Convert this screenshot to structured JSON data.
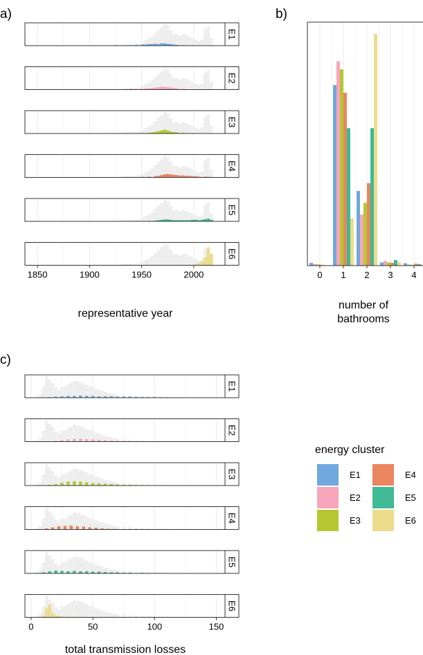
{
  "colors": {
    "E1": "#6fa8dc",
    "E2": "#f7a6bb",
    "E3": "#b5c832",
    "E4": "#ea8560",
    "E5": "#3fba94",
    "E6": "#ecdc8c",
    "background_distribution": "#eeeeee"
  },
  "legend": {
    "title": "energy cluster",
    "items": [
      "E1",
      "E2",
      "E3",
      "E4",
      "E5",
      "E6"
    ]
  },
  "chart_data": [
    {
      "panel": "a)",
      "type": "histogram",
      "xlabel": "representative year",
      "ylabel": "",
      "xlim": [
        1838,
        2030
      ],
      "xticks": [
        1850,
        1900,
        1950,
        2000
      ],
      "grid": true,
      "facets": [
        "E1",
        "E2",
        "E3",
        "E4",
        "E5",
        "E6"
      ],
      "bin_width": 3,
      "background": {
        "x": [
          1930,
          1933,
          1936,
          1939,
          1942,
          1945,
          1948,
          1951,
          1954,
          1957,
          1960,
          1963,
          1966,
          1969,
          1972,
          1975,
          1978,
          1981,
          1984,
          1987,
          1990,
          1993,
          1996,
          1999,
          2002,
          2005,
          2008,
          2011,
          2014,
          2017
        ],
        "y": [
          2,
          3,
          4,
          4,
          3,
          4,
          6,
          10,
          14,
          18,
          24,
          32,
          40,
          48,
          56,
          52,
          40,
          30,
          30,
          26,
          30,
          28,
          24,
          20,
          16,
          12,
          16,
          44,
          50,
          20
        ]
      },
      "series": [
        {
          "name": "E1",
          "x": [
            1875,
            1885,
            1905,
            1915,
            1925,
            1935,
            1945,
            1951,
            1954,
            1957,
            1960,
            1963,
            1966,
            1969,
            1972,
            1975,
            1978,
            1981,
            1984,
            1990,
            2000,
            2010
          ],
          "y": [
            0.5,
            1,
            1,
            1,
            1.5,
            1,
            2,
            3,
            3,
            4,
            4,
            5,
            4,
            6,
            6,
            5,
            4,
            3,
            2,
            1.5,
            1,
            0.5
          ]
        },
        {
          "name": "E2",
          "x": [
            1900,
            1910,
            1920,
            1930,
            1940,
            1945,
            1950,
            1954,
            1957,
            1960,
            1963,
            1966,
            1969,
            1972,
            1975,
            1978,
            1981,
            1984,
            1990,
            2000,
            2010
          ],
          "y": [
            0.5,
            1,
            1,
            1,
            2,
            1.5,
            2,
            3,
            3,
            4,
            5,
            6,
            7,
            7,
            6,
            5,
            4,
            3,
            2,
            1,
            0.5
          ]
        },
        {
          "name": "E3",
          "x": [
            1850,
            1880,
            1900,
            1920,
            1940,
            1951,
            1957,
            1960,
            1963,
            1966,
            1969,
            1972,
            1975,
            1978,
            1981,
            1984,
            1990,
            2000,
            2010
          ],
          "y": [
            0.5,
            0.5,
            0.5,
            1,
            1,
            1.5,
            2,
            3,
            4,
            6,
            8,
            10,
            8,
            5,
            4,
            3,
            2,
            1,
            0.5
          ]
        },
        {
          "name": "E4",
          "x": [
            1845,
            1875,
            1890,
            1905,
            1920,
            1935,
            1951,
            1957,
            1963,
            1966,
            1969,
            1972,
            1975,
            1978,
            1981,
            1984,
            1987,
            1990,
            1993,
            1996,
            1999,
            2002,
            2005,
            2011,
            2014
          ],
          "y": [
            0.5,
            0.5,
            1,
            0.5,
            1,
            1,
            1.5,
            2,
            3,
            4,
            6,
            8,
            9,
            8,
            7,
            6,
            5,
            5,
            4,
            4,
            3,
            3,
            2,
            2,
            1.5
          ]
        },
        {
          "name": "E5",
          "x": [
            1890,
            1910,
            1930,
            1945,
            1951,
            1957,
            1963,
            1966,
            1969,
            1972,
            1975,
            1978,
            1981,
            1984,
            1987,
            1990,
            1993,
            1996,
            1999,
            2002,
            2005,
            2008,
            2011,
            2014,
            2017
          ],
          "y": [
            0.5,
            1,
            0.5,
            1,
            1,
            1.5,
            2,
            3,
            4,
            5,
            5,
            4,
            3,
            3,
            3,
            3,
            3,
            3,
            4,
            4,
            3,
            4,
            6,
            7,
            4
          ]
        },
        {
          "name": "E6",
          "x": [
            1940,
            1960,
            1975,
            1984,
            1990,
            1996,
            2002,
            2005,
            2008,
            2011,
            2014,
            2017
          ],
          "y": [
            0.5,
            0.5,
            1,
            1,
            1.5,
            2,
            3,
            5,
            10,
            20,
            44,
            30
          ]
        }
      ]
    },
    {
      "panel": "b)",
      "type": "bar",
      "xlabel": "number of bathrooms",
      "ylabel": "",
      "categories": [
        "0",
        "1",
        "2",
        "3",
        "4"
      ],
      "ylim": [
        0,
        0.62
      ],
      "grid": true,
      "series": [
        {
          "name": "E1",
          "values": [
            0.007,
            0.46,
            0.19,
            0.008,
            0.006
          ]
        },
        {
          "name": "E2",
          "values": [
            0.004,
            0.52,
            0.13,
            0.012,
            0.003
          ]
        },
        {
          "name": "E3",
          "values": [
            0.003,
            0.5,
            0.16,
            0.008,
            0.002
          ]
        },
        {
          "name": "E4",
          "values": [
            0.002,
            0.44,
            0.21,
            0.007,
            0.005
          ]
        },
        {
          "name": "E5",
          "values": [
            0.001,
            0.35,
            0.35,
            0.014,
            0.004
          ]
        },
        {
          "name": "E6",
          "values": [
            0.001,
            0.12,
            0.59,
            0.009,
            0.002
          ]
        }
      ]
    },
    {
      "panel": "c)",
      "type": "histogram",
      "xlabel": "total transmission losses",
      "ylabel": "",
      "xlim": [
        -5,
        157
      ],
      "xticks": [
        0,
        50,
        100,
        150
      ],
      "grid": true,
      "facets": [
        "E1",
        "E2",
        "E3",
        "E4",
        "E5",
        "E6"
      ],
      "bin_width": 2.5,
      "background": {
        "x": [
          5,
          7.5,
          10,
          12.5,
          15,
          17.5,
          20,
          22.5,
          25,
          27.5,
          30,
          32.5,
          35,
          37.5,
          40,
          42.5,
          45,
          47.5,
          50,
          52.5,
          55,
          57.5,
          60,
          62.5,
          65,
          67.5,
          70,
          75,
          80,
          85,
          90,
          95,
          100,
          105,
          110,
          120,
          130,
          140
        ],
        "y": [
          4,
          10,
          30,
          60,
          50,
          40,
          28,
          22,
          30,
          32,
          38,
          42,
          48,
          46,
          44,
          40,
          36,
          32,
          30,
          26,
          22,
          20,
          16,
          14,
          12,
          10,
          8,
          7,
          6,
          5,
          4,
          3,
          3,
          2,
          2,
          1.5,
          1,
          0.5
        ]
      },
      "series": [
        {
          "name": "E1",
          "x": [
            10,
            15,
            20,
            25,
            30,
            35,
            40,
            45,
            50,
            55,
            60,
            65,
            70,
            75,
            80,
            85,
            90,
            95,
            100,
            105,
            110,
            120,
            130,
            140,
            150
          ],
          "y": [
            1,
            2,
            3,
            4,
            5,
            5,
            6,
            5,
            5,
            4,
            4,
            4,
            3,
            3,
            3,
            2,
            2,
            2,
            2,
            1.5,
            1.5,
            1,
            1,
            0.5,
            0.5
          ]
        },
        {
          "name": "E2",
          "x": [
            15,
            20,
            25,
            30,
            35,
            40,
            45,
            50,
            55,
            60,
            65,
            70,
            75,
            80,
            90,
            100,
            110,
            120,
            135,
            145
          ],
          "y": [
            1,
            2,
            4,
            6,
            7,
            8,
            7,
            6,
            5,
            4,
            3,
            2.5,
            2,
            1.5,
            1,
            1,
            0.5,
            0.5,
            0.5,
            0.5
          ]
        },
        {
          "name": "E3",
          "x": [
            10,
            15,
            20,
            25,
            30,
            35,
            40,
            45,
            50,
            55,
            60,
            65,
            70,
            75,
            80,
            85,
            90,
            100,
            110,
            120,
            130,
            140
          ],
          "y": [
            1,
            2,
            4,
            8,
            11,
            12,
            11,
            9,
            7,
            6,
            5,
            4,
            3,
            2.5,
            2,
            1.5,
            1,
            1,
            1,
            0.5,
            0.5,
            0.5
          ]
        },
        {
          "name": "E4",
          "x": [
            7.5,
            12.5,
            17.5,
            22.5,
            27.5,
            32.5,
            37.5,
            42.5,
            47.5,
            52.5,
            57.5,
            62.5,
            67.5,
            75,
            85,
            95,
            110
          ],
          "y": [
            1,
            3,
            6,
            9,
            10,
            11,
            9,
            8,
            6,
            5,
            3,
            2,
            1.5,
            1,
            1,
            0.5,
            0.5
          ]
        },
        {
          "name": "E5",
          "x": [
            5,
            10,
            15,
            20,
            25,
            30,
            35,
            40,
            45,
            50,
            55,
            60,
            65,
            70,
            75,
            80,
            90,
            100,
            110,
            120,
            135
          ],
          "y": [
            1,
            3,
            6,
            8,
            7,
            6,
            7,
            6,
            6,
            5,
            5,
            4,
            3,
            3,
            2,
            2,
            1.5,
            1,
            1,
            0.5,
            0.5
          ]
        },
        {
          "name": "E6",
          "x": [
            10,
            12.5,
            15,
            17.5,
            20,
            22.5,
            25,
            30,
            35,
            40,
            50,
            60,
            70,
            80,
            100
          ],
          "y": [
            5,
            25,
            35,
            14,
            6,
            4,
            3,
            2,
            2,
            1.5,
            1,
            1,
            0.5,
            0.5,
            0.5
          ]
        }
      ]
    }
  ]
}
